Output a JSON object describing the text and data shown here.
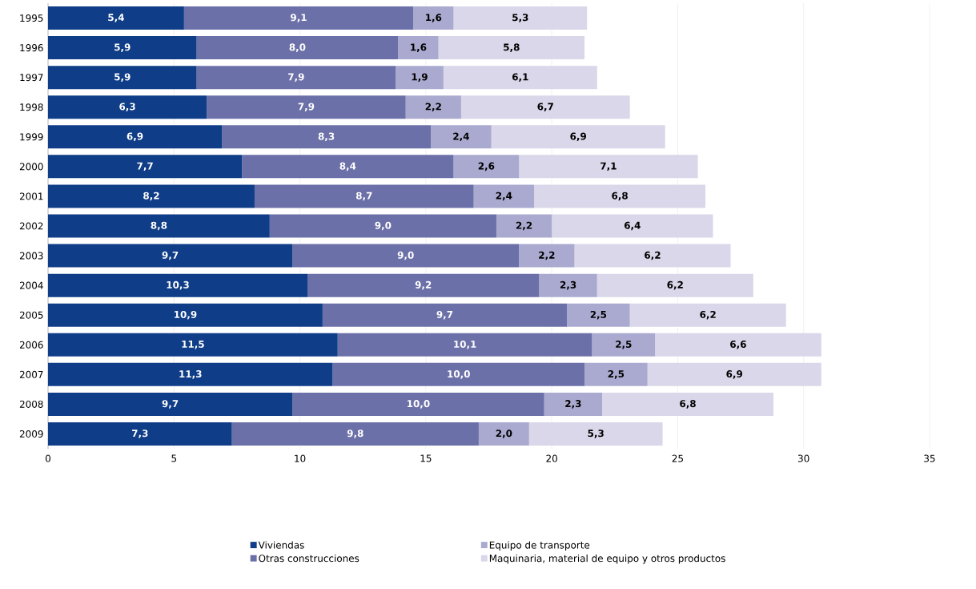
{
  "chart_data": {
    "type": "bar",
    "orientation": "horizontal",
    "stacked": true,
    "categories": [
      "1995",
      "1996",
      "1997",
      "1998",
      "1999",
      "2000",
      "2001",
      "2002",
      "2003",
      "2004",
      "2005",
      "2006",
      "2007",
      "2008",
      "2009"
    ],
    "xlim": [
      0,
      35
    ],
    "xticks": [
      0,
      5,
      10,
      15,
      20,
      25,
      30,
      35
    ],
    "grid": "x",
    "legend": "bottom",
    "series": [
      {
        "name": "Viviendas",
        "color": "#0f3d87",
        "values": [
          5.4,
          5.9,
          5.9,
          6.3,
          6.9,
          7.7,
          8.2,
          8.8,
          9.7,
          10.3,
          10.9,
          11.5,
          11.3,
          9.7,
          7.3
        ],
        "value_labels": [
          "5,4",
          "5,9",
          "5,9",
          "6,3",
          "6,9",
          "7,7",
          "8,2",
          "8,8",
          "9,7",
          "10,3",
          "10,9",
          "11,5",
          "11,3",
          "9,7",
          "7,3"
        ]
      },
      {
        "name": "Otras construcciones",
        "color": "#6c70a8",
        "values": [
          9.1,
          8.0,
          7.9,
          7.9,
          8.3,
          8.4,
          8.7,
          9.0,
          9.0,
          9.2,
          9.7,
          10.1,
          10.0,
          10.0,
          9.8
        ],
        "value_labels": [
          "9,1",
          "8,0",
          "7,9",
          "7,9",
          "8,3",
          "8,4",
          "8,7",
          "9,0",
          "9,0",
          "9,2",
          "9,7",
          "10,1",
          "10,0",
          "10,0",
          "9,8"
        ]
      },
      {
        "name": "Equipo de transporte",
        "color": "#aaaad0",
        "values": [
          1.6,
          1.6,
          1.9,
          2.2,
          2.4,
          2.6,
          2.4,
          2.2,
          2.2,
          2.3,
          2.5,
          2.5,
          2.5,
          2.3,
          2.0
        ],
        "value_labels": [
          "1,6",
          "1,6",
          "1,9",
          "2,2",
          "2,4",
          "2,6",
          "2,4",
          "2,2",
          "2,2",
          "2,3",
          "2,5",
          "2,5",
          "2,5",
          "2,3",
          "2,0"
        ]
      },
      {
        "name": "Maquinaria, material de equipo y otros productos",
        "color": "#d9d7e9",
        "values": [
          5.3,
          5.8,
          6.1,
          6.7,
          6.9,
          7.1,
          6.8,
          6.4,
          6.2,
          6.2,
          6.2,
          6.6,
          6.9,
          6.8,
          5.3
        ],
        "value_labels": [
          "5,3",
          "5,8",
          "6,1",
          "6,7",
          "6,9",
          "7,1",
          "6,8",
          "6,4",
          "6,2",
          "6,2",
          "6,2",
          "6,6",
          "6,9",
          "6,8",
          "5,3"
        ]
      }
    ]
  }
}
